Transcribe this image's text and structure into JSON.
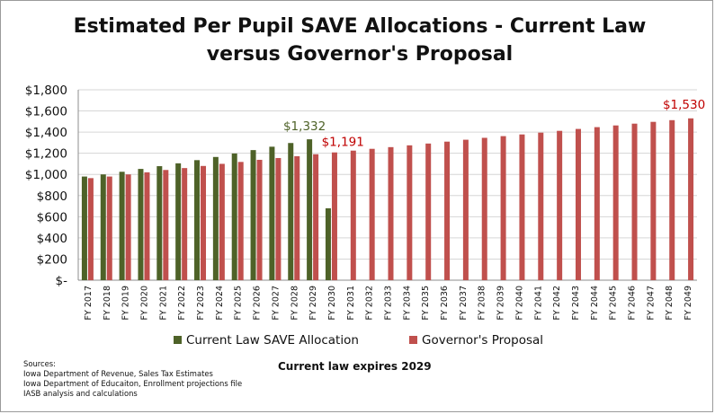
{
  "chart_data": {
    "type": "bar",
    "title": "Estimated Per Pupil SAVE Allocations - Current Law versus Governor's Proposal",
    "categories": [
      "FY 2017",
      "FY 2018",
      "FY 2019",
      "FY 2020",
      "FY 2021",
      "FY 2022",
      "FY 2023",
      "FY 2024",
      "FY 2025",
      "FY 2026",
      "FY 2027",
      "FY 2028",
      "FY 2029",
      "FY 2030",
      "FY 2031",
      "FY 2032",
      "FY 2033",
      "FY 2034",
      "FY 2035",
      "FY 2036",
      "FY 2037",
      "FY 2038",
      "FY 2039",
      "FY 2040",
      "FY 2041",
      "FY 2042",
      "FY 2043",
      "FY 2044",
      "FY 2045",
      "FY 2046",
      "FY 2047",
      "FY 2048",
      "FY 2049"
    ],
    "series": [
      {
        "name": "Current Law SAVE Allocation",
        "color": "#4e6228",
        "values": [
          980,
          1000,
          1025,
          1052,
          1078,
          1105,
          1135,
          1165,
          1198,
          1230,
          1262,
          1297,
          1332,
          680,
          null,
          null,
          null,
          null,
          null,
          null,
          null,
          null,
          null,
          null,
          null,
          null,
          null,
          null,
          null,
          null,
          null,
          null,
          null
        ]
      },
      {
        "name": "Governor's Proposal",
        "color": "#c0504d",
        "values": [
          965,
          980,
          1000,
          1020,
          1042,
          1060,
          1080,
          1100,
          1118,
          1138,
          1155,
          1172,
          1191,
          1208,
          1225,
          1242,
          1258,
          1275,
          1292,
          1310,
          1328,
          1346,
          1362,
          1378,
          1395,
          1412,
          1430,
          1447,
          1463,
          1480,
          1497,
          1513,
          1530
        ]
      }
    ],
    "ylim": [
      0,
      1800
    ],
    "yticks": [
      0,
      200,
      400,
      600,
      800,
      1000,
      1200,
      1400,
      1600,
      1800
    ],
    "ytick_labels": [
      "$-",
      "$200",
      "$400",
      "$600",
      "$800",
      "$1,000",
      "$1,200",
      "$1,400",
      "$1,600",
      "$1,800"
    ],
    "annotations": [
      {
        "text": "$1,332",
        "series": 0,
        "index": 12,
        "color": "#4e6228"
      },
      {
        "text": "$1,191",
        "series": 1,
        "index": 12,
        "color": "#c00000"
      },
      {
        "text": "$1,530",
        "series": 1,
        "index": 32,
        "color": "#c00000"
      }
    ],
    "legend": "bottom",
    "grid": true
  },
  "footnote": "Current law expires 2029",
  "sources": {
    "heading": "Sources:",
    "lines": [
      "Iowa Department of Revenue, Sales Tax Estimates",
      "Iowa Department of Educaiton, Enrollment projections file",
      "IASB analysis and calculations"
    ]
  }
}
